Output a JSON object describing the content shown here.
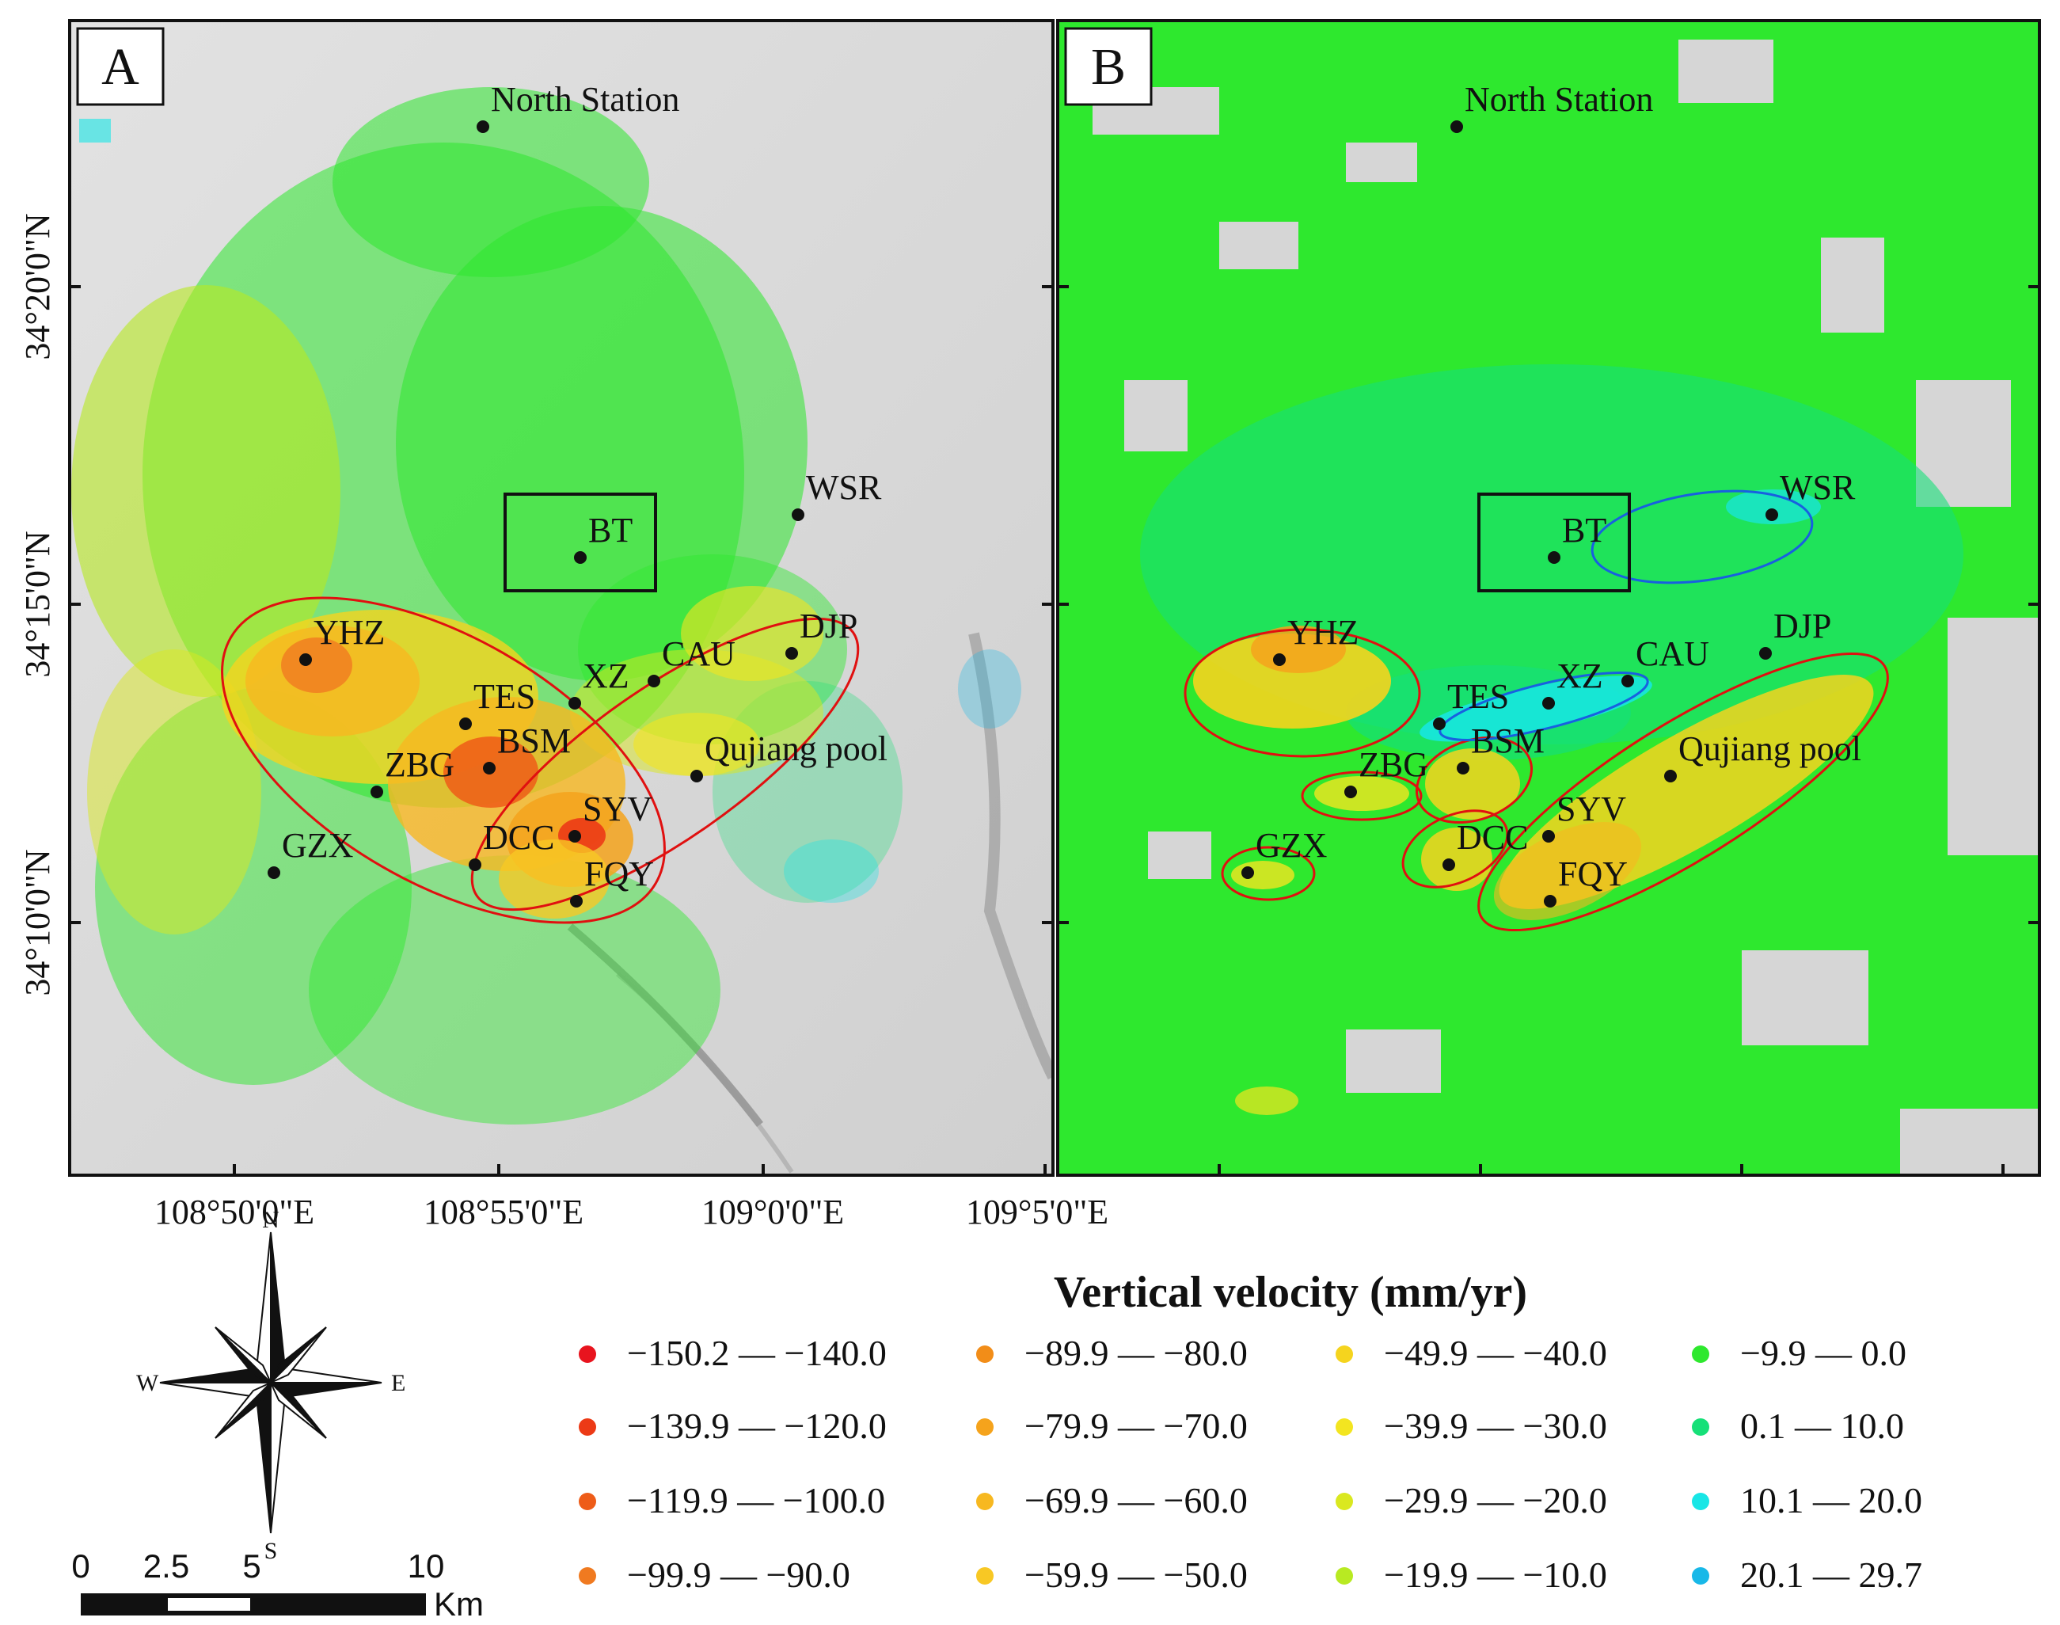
{
  "panels": [
    {
      "id": "A",
      "label": "A"
    },
    {
      "id": "B",
      "label": "B"
    }
  ],
  "stations": [
    {
      "code": "North Station"
    },
    {
      "code": "WSR"
    },
    {
      "code": "BT"
    },
    {
      "code": "YHZ"
    },
    {
      "code": "DJP"
    },
    {
      "code": "CAU"
    },
    {
      "code": "XZ"
    },
    {
      "code": "TES"
    },
    {
      "code": "BSM"
    },
    {
      "code": "ZBG"
    },
    {
      "code": "Qujiang pool"
    },
    {
      "code": "SYV"
    },
    {
      "code": "DCC"
    },
    {
      "code": "GZX"
    },
    {
      "code": "FQY"
    }
  ],
  "axes": {
    "lon_labels": [
      "108°50'0\"E",
      "108°55'0\"E",
      "109°0'0\"E",
      "109°5'0\"E"
    ],
    "lat_labels": [
      "34°20'0\"N",
      "34°15'0\"N",
      "34°10'0\"N"
    ]
  },
  "compass": {
    "n": "N",
    "s": "S",
    "e": "E",
    "w": "W"
  },
  "scale_bar": {
    "ticks": [
      "0",
      "2.5",
      "5",
      "10"
    ],
    "unit": "Km"
  },
  "legend": {
    "title": "Vertical velocity (mm/yr)",
    "classes": [
      {
        "label": "−150.2 — −140.0",
        "color": "#e8141e"
      },
      {
        "label": "−139.9 — −120.0",
        "color": "#ec3a16"
      },
      {
        "label": "−119.9 — −100.0",
        "color": "#ee5c18"
      },
      {
        "label": "−99.9 — −90.0",
        "color": "#f07a20"
      },
      {
        "label": "−89.9 — −80.0",
        "color": "#f28d18"
      },
      {
        "label": "−79.9 — −70.0",
        "color": "#f5a31c"
      },
      {
        "label": "−69.9 — −60.0",
        "color": "#f7b820"
      },
      {
        "label": "−59.9 — −50.0",
        "color": "#f8c824"
      },
      {
        "label": "−49.9 — −40.0",
        "color": "#f5d41e"
      },
      {
        "label": "−39.9 — −30.0",
        "color": "#f3e520"
      },
      {
        "label": "−29.9 — −20.0",
        "color": "#dae820"
      },
      {
        "label": "−19.9 — −10.0",
        "color": "#b8ea22"
      },
      {
        "label": "−9.9 — 0.0",
        "color": "#2ee82e"
      },
      {
        "label": "0.1 — 10.0",
        "color": "#16e078"
      },
      {
        "label": "10.1 — 20.0",
        "color": "#18e6e6"
      },
      {
        "label": "20.1 — 29.7",
        "color": "#18b8e8"
      }
    ]
  }
}
